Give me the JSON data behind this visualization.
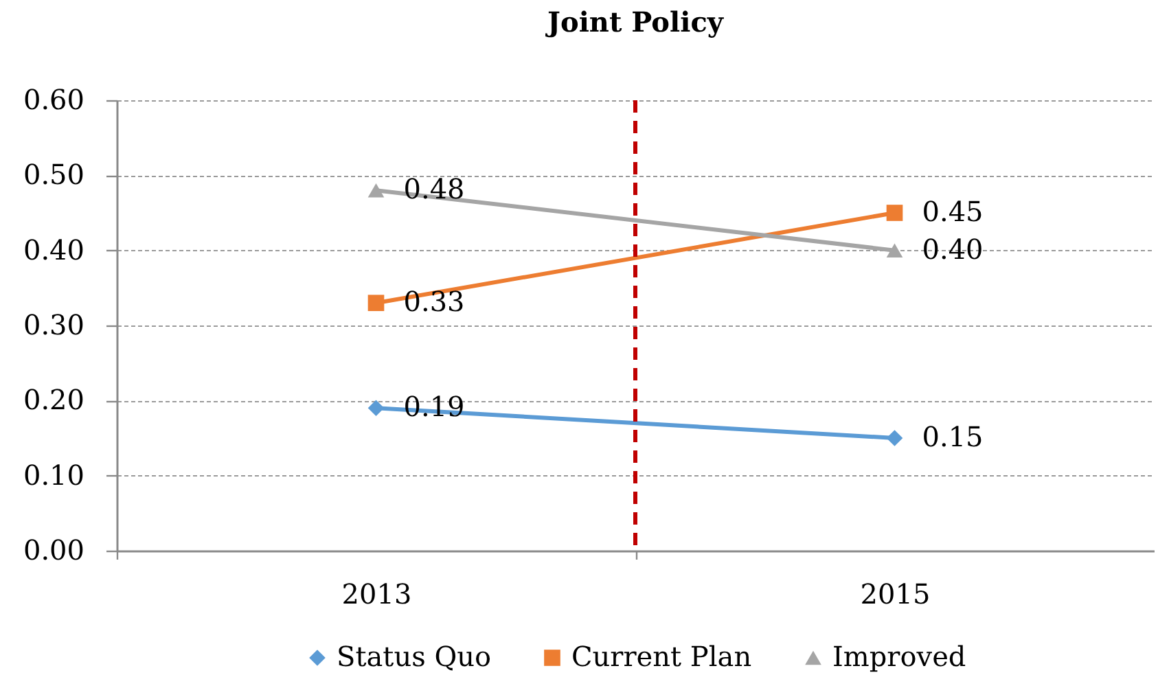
{
  "chart_data": {
    "type": "line",
    "title": "Joint Policy",
    "x": [
      2013,
      2015
    ],
    "xlim": [
      2012,
      2016
    ],
    "xticks": [
      {
        "value": 2012,
        "label": null
      },
      2013,
      {
        "value": 2014,
        "label": null
      },
      2015
    ],
    "ylim": [
      0,
      0.6
    ],
    "yticks": [
      {
        "value": 0,
        "label": "0.00"
      },
      {
        "value": 0.1,
        "label": "0.10"
      },
      {
        "value": 0.2,
        "label": "0.20"
      },
      {
        "value": 0.3,
        "label": "0.30"
      },
      {
        "value": 0.4,
        "label": "0.40"
      },
      {
        "value": 0.5,
        "label": "0.50"
      },
      {
        "value": 0.6,
        "label": "0.60"
      }
    ],
    "grid": "y",
    "legend": "bottom",
    "ref_lines": [
      {
        "axis": "x",
        "value": 2014,
        "color": "#c00000",
        "line_style": "dashed"
      }
    ],
    "series": [
      {
        "name": "Status Quo",
        "color": "#5b9bd5",
        "marker": "diamond",
        "values": [
          0.19,
          0.15
        ],
        "value_labels": [
          "0.19",
          "0.15"
        ]
      },
      {
        "name": "Current Plan",
        "color": "#ed7d31",
        "marker": "square",
        "values": [
          0.33,
          0.45
        ],
        "value_labels": [
          "0.33",
          "0.45"
        ]
      },
      {
        "name": "Improved",
        "color": "#a5a5a5",
        "marker": "triangle",
        "values": [
          0.48,
          0.4
        ],
        "value_labels": [
          "0.48",
          "0.40"
        ]
      }
    ]
  }
}
